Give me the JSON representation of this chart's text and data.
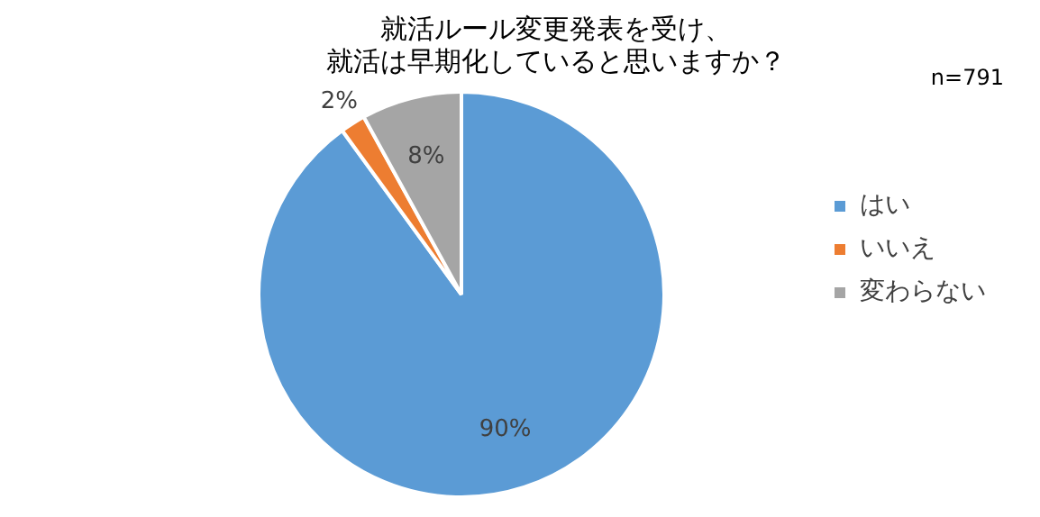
{
  "chart_data": {
    "type": "pie",
    "title": "就活ルール変更発表を受け、就活は早期化していると思いますか？",
    "categories": [
      "はい",
      "いいえ",
      "変わらない"
    ],
    "values": [
      90,
      2,
      8
    ],
    "value_labels": [
      "90%",
      "2%",
      "8%"
    ],
    "colors": [
      "#5b9bd5",
      "#ed7d31",
      "#a5a5a5"
    ],
    "legend": "right",
    "annotations": [
      "n=791"
    ]
  }
}
